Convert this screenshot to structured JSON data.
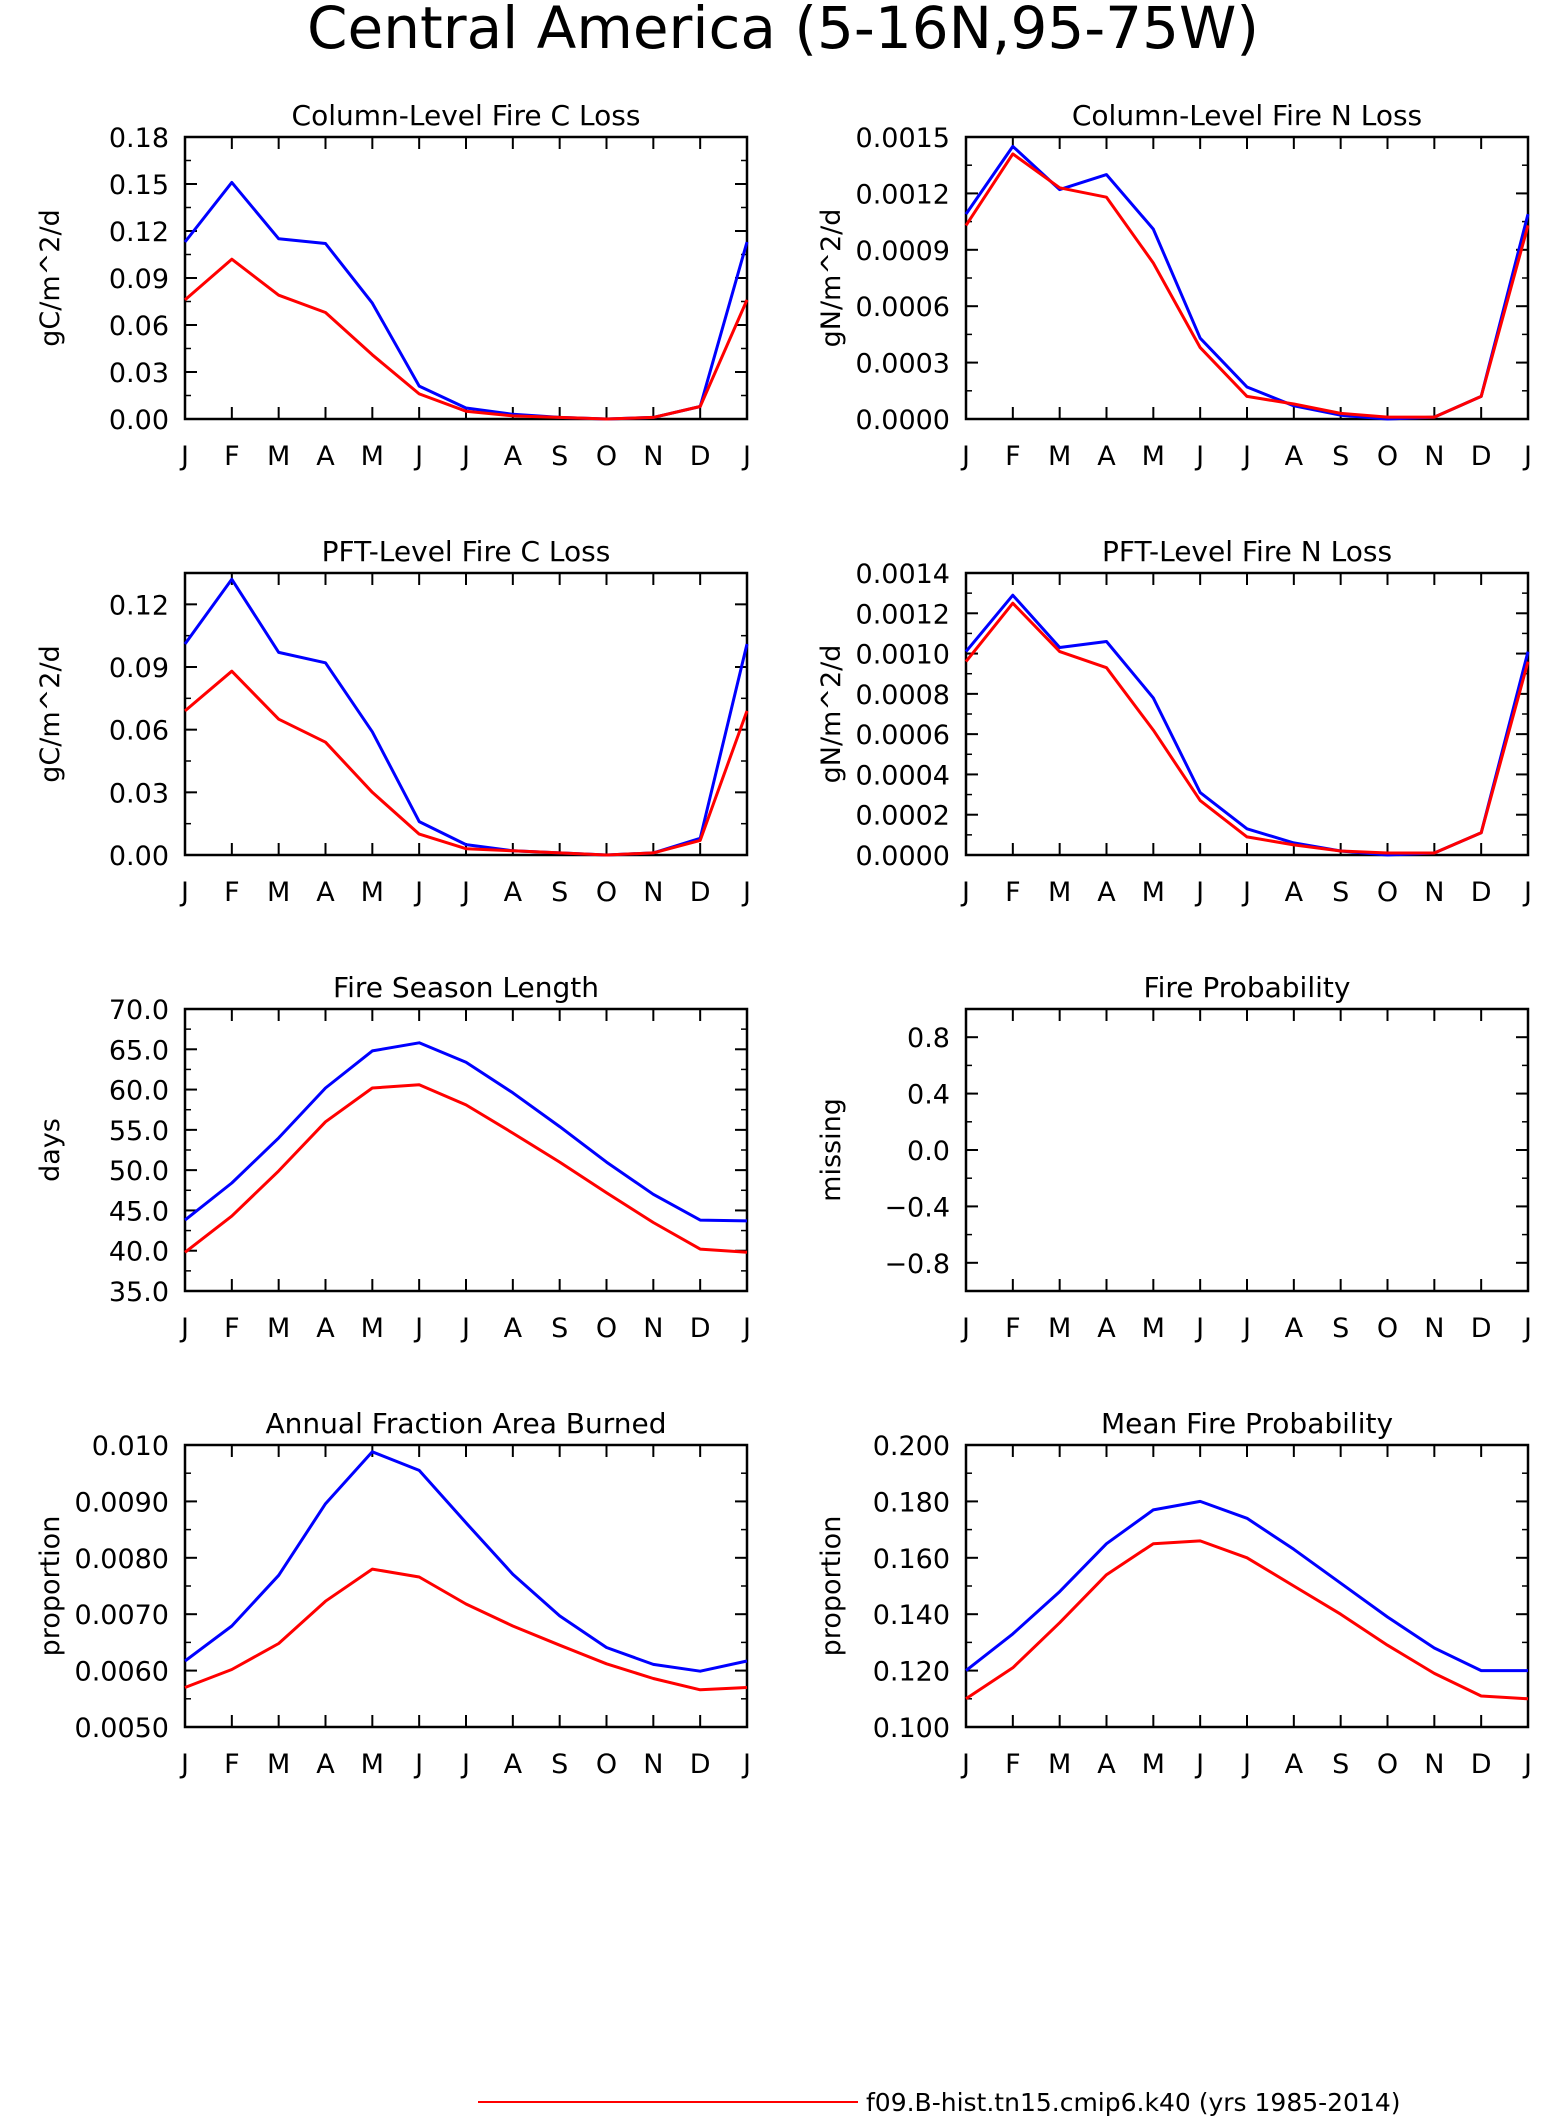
{
  "page": {
    "title": "Central America (5-16N,95-75W)",
    "legend": {
      "entries": [
        {
          "label": "f09.B-hist.tn15.cmip6.k40 (yrs 1985-2014)",
          "color": "#ff0000"
        }
      ]
    }
  },
  "chart_data": [
    {
      "type": "line",
      "title": "Column-Level Fire C Loss",
      "ylabel": "gC/m^2/d",
      "categories": [
        "J",
        "F",
        "M",
        "A",
        "M",
        "J",
        "J",
        "A",
        "S",
        "O",
        "N",
        "D",
        "J"
      ],
      "ylim": [
        0,
        0.18
      ],
      "yticks": [
        "0.00",
        "0.03",
        "0.06",
        "0.09",
        "0.12",
        "0.15",
        "0.18"
      ],
      "series": [
        {
          "color": "#0000ff",
          "values": [
            0.113,
            0.151,
            0.115,
            0.112,
            0.074,
            0.021,
            0.007,
            0.003,
            0.001,
            0.0,
            0.001,
            0.008,
            0.113
          ]
        },
        {
          "color": "#ff0000",
          "values": [
            0.076,
            0.102,
            0.079,
            0.068,
            0.041,
            0.016,
            0.005,
            0.002,
            0.001,
            0.0,
            0.001,
            0.008,
            0.076
          ]
        }
      ]
    },
    {
      "type": "line",
      "title": "Column-Level Fire N Loss",
      "ylabel": "gN/m^2/d",
      "categories": [
        "J",
        "F",
        "M",
        "A",
        "M",
        "J",
        "J",
        "A",
        "S",
        "O",
        "N",
        "D",
        "J"
      ],
      "ylim": [
        0,
        0.0015
      ],
      "yticks": [
        "0.0000",
        "0.0003",
        "0.0006",
        "0.0009",
        "0.0012",
        "0.0015"
      ],
      "series": [
        {
          "color": "#0000ff",
          "values": [
            0.00109,
            0.00145,
            0.00122,
            0.0013,
            0.00101,
            0.00043,
            0.00017,
            7e-05,
            2e-05,
            0.0,
            1e-05,
            0.00012,
            0.00109
          ]
        },
        {
          "color": "#ff0000",
          "values": [
            0.00103,
            0.00141,
            0.00123,
            0.00118,
            0.00083,
            0.00038,
            0.00012,
            8e-05,
            3e-05,
            1e-05,
            1e-05,
            0.00012,
            0.00103
          ]
        }
      ]
    },
    {
      "type": "line",
      "title": "PFT-Level Fire C Loss",
      "ylabel": "gC/m^2/d",
      "categories": [
        "J",
        "F",
        "M",
        "A",
        "M",
        "J",
        "J",
        "A",
        "S",
        "O",
        "N",
        "D",
        "J"
      ],
      "ylim": [
        0,
        0.135
      ],
      "yticks": [
        "0.00",
        "0.03",
        "0.06",
        "0.09",
        "0.12"
      ],
      "series": [
        {
          "color": "#0000ff",
          "values": [
            0.101,
            0.132,
            0.097,
            0.092,
            0.059,
            0.016,
            0.005,
            0.002,
            0.001,
            0.0,
            0.001,
            0.008,
            0.101
          ]
        },
        {
          "color": "#ff0000",
          "values": [
            0.069,
            0.088,
            0.065,
            0.054,
            0.03,
            0.01,
            0.003,
            0.002,
            0.001,
            0.0,
            0.001,
            0.007,
            0.069
          ]
        }
      ]
    },
    {
      "type": "line",
      "title": "PFT-Level Fire N Loss",
      "ylabel": "gN/m^2/d",
      "categories": [
        "J",
        "F",
        "M",
        "A",
        "M",
        "J",
        "J",
        "A",
        "S",
        "O",
        "N",
        "D",
        "J"
      ],
      "ylim": [
        0,
        0.0014
      ],
      "yticks": [
        "0.0000",
        "0.0002",
        "0.0004",
        "0.0006",
        "0.0008",
        "0.0010",
        "0.0012",
        "0.0014"
      ],
      "series": [
        {
          "color": "#0000ff",
          "values": [
            0.00101,
            0.00129,
            0.00103,
            0.00106,
            0.00078,
            0.00031,
            0.00013,
            6e-05,
            2e-05,
            0.0,
            1e-05,
            0.00011,
            0.00101
          ]
        },
        {
          "color": "#ff0000",
          "values": [
            0.00096,
            0.00125,
            0.00101,
            0.00093,
            0.00062,
            0.00027,
            9e-05,
            5e-05,
            2e-05,
            1e-05,
            1e-05,
            0.00011,
            0.00096
          ]
        }
      ]
    },
    {
      "type": "line",
      "title": "Fire Season Length",
      "ylabel": "days",
      "categories": [
        "J",
        "F",
        "M",
        "A",
        "M",
        "J",
        "J",
        "A",
        "S",
        "O",
        "N",
        "D",
        "J"
      ],
      "ylim": [
        35,
        70
      ],
      "yticks": [
        "35.0",
        "40.0",
        "45.0",
        "50.0",
        "55.0",
        "60.0",
        "65.0",
        "70.0"
      ],
      "series": [
        {
          "color": "#0000ff",
          "values": [
            43.8,
            48.4,
            54.0,
            60.2,
            64.8,
            65.8,
            63.4,
            59.6,
            55.4,
            51.0,
            47.0,
            43.8,
            43.7
          ]
        },
        {
          "color": "#ff0000",
          "values": [
            39.8,
            44.3,
            49.9,
            56.0,
            60.2,
            60.6,
            58.1,
            54.6,
            51.0,
            47.2,
            43.5,
            40.2,
            39.8
          ]
        }
      ]
    },
    {
      "type": "line",
      "title": "Fire Probability",
      "ylabel": "missing",
      "categories": [
        "J",
        "F",
        "M",
        "A",
        "M",
        "J",
        "J",
        "A",
        "S",
        "O",
        "N",
        "D",
        "J"
      ],
      "ylim": [
        -1.0,
        1.0
      ],
      "yticks": [
        "-0.8",
        "-0.4",
        "0.0",
        "0.4",
        "0.8"
      ],
      "series": []
    },
    {
      "type": "line",
      "title": "Annual Fraction Area Burned",
      "ylabel": "proportion",
      "categories": [
        "J",
        "F",
        "M",
        "A",
        "M",
        "J",
        "J",
        "A",
        "S",
        "O",
        "N",
        "D",
        "J"
      ],
      "ylim": [
        0.005,
        0.01
      ],
      "yticks": [
        "0.0050",
        "0.0060",
        "0.0070",
        "0.0080",
        "0.0090",
        "0.010"
      ],
      "series": [
        {
          "color": "#0000ff",
          "values": [
            0.00617,
            0.00679,
            0.00769,
            0.00896,
            0.00988,
            0.00955,
            0.00862,
            0.00771,
            0.00697,
            0.00641,
            0.00611,
            0.00599,
            0.00617
          ]
        },
        {
          "color": "#ff0000",
          "values": [
            0.0057,
            0.00602,
            0.00648,
            0.00723,
            0.0078,
            0.00766,
            0.00718,
            0.00679,
            0.00645,
            0.00612,
            0.00586,
            0.00566,
            0.0057
          ]
        }
      ]
    },
    {
      "type": "line",
      "title": "Mean Fire Probability",
      "ylabel": "proportion",
      "categories": [
        "J",
        "F",
        "M",
        "A",
        "M",
        "J",
        "J",
        "A",
        "S",
        "O",
        "N",
        "D",
        "J"
      ],
      "ylim": [
        0.1,
        0.2
      ],
      "yticks": [
        "0.100",
        "0.120",
        "0.140",
        "0.160",
        "0.180",
        "0.200"
      ],
      "series": [
        {
          "color": "#0000ff",
          "values": [
            0.12,
            0.133,
            0.148,
            0.165,
            0.177,
            0.18,
            0.174,
            0.163,
            0.151,
            0.139,
            0.128,
            0.12,
            0.12
          ]
        },
        {
          "color": "#ff0000",
          "values": [
            0.11,
            0.121,
            0.137,
            0.154,
            0.165,
            0.166,
            0.16,
            0.15,
            0.14,
            0.129,
            0.119,
            0.111,
            0.11
          ]
        }
      ]
    }
  ]
}
